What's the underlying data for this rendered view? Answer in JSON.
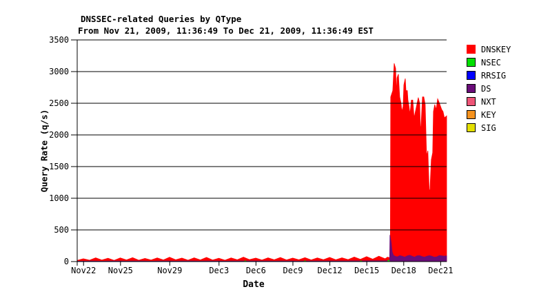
{
  "chart_data": {
    "type": "area",
    "title": "DNSSEC-related Queries by QType",
    "subtitle": "From Nov 21, 2009, 11:36:49 To Dec 21, 2009, 11:36:49 EST",
    "xlabel": "Date",
    "ylabel": "Query Rate (q/s)",
    "ylim": [
      0,
      3500
    ],
    "yticks": [
      0,
      500,
      1000,
      1500,
      2000,
      2500,
      3000,
      3500
    ],
    "x_range_days": [
      0,
      30
    ],
    "x_start": "Nov 21, 2009 11:36:49",
    "x_end": "Dec 21, 2009 11:36:49",
    "grid": "horizontal",
    "legend_position": "right",
    "xticks": [
      {
        "label": "Nov22",
        "t": 0.517
      },
      {
        "label": "Nov25",
        "t": 3.517
      },
      {
        "label": "Nov29",
        "t": 7.517
      },
      {
        "label": "Dec3",
        "t": 11.517
      },
      {
        "label": "Dec6",
        "t": 14.517
      },
      {
        "label": "Dec9",
        "t": 17.517
      },
      {
        "label": "Dec12",
        "t": 20.517
      },
      {
        "label": "Dec15",
        "t": 23.517
      },
      {
        "label": "Dec18",
        "t": 26.517
      },
      {
        "label": "Dec21",
        "t": 29.517
      }
    ],
    "legend": [
      {
        "label": "DNSKEY",
        "color": "#ff0000",
        "border": "#ff0000"
      },
      {
        "label": "NSEC",
        "color": "#00e000",
        "border": "#000000"
      },
      {
        "label": "RRSIG",
        "color": "#0000ff",
        "border": "#000000"
      },
      {
        "label": "DS",
        "color": "#6a0d79",
        "border": "#000000"
      },
      {
        "label": "NXT",
        "color": "#ee5577",
        "border": "#000000"
      },
      {
        "label": "KEY",
        "color": "#f5921e",
        "border": "#000000"
      },
      {
        "label": "SIG",
        "color": "#e3df00",
        "border": "#000000"
      }
    ],
    "series": [
      {
        "name": "DNSKEY",
        "color": "#ff0000",
        "points": [
          [
            0,
            18
          ],
          [
            0.5,
            45
          ],
          [
            1,
            22
          ],
          [
            1.5,
            60
          ],
          [
            2,
            25
          ],
          [
            2.5,
            52
          ],
          [
            3,
            20
          ],
          [
            3.5,
            58
          ],
          [
            4,
            26
          ],
          [
            4.5,
            62
          ],
          [
            5,
            22
          ],
          [
            5.5,
            50
          ],
          [
            6,
            24
          ],
          [
            6.5,
            58
          ],
          [
            7,
            26
          ],
          [
            7.5,
            68
          ],
          [
            8,
            28
          ],
          [
            8.5,
            55
          ],
          [
            9,
            22
          ],
          [
            9.5,
            60
          ],
          [
            10,
            26
          ],
          [
            10.5,
            66
          ],
          [
            11,
            24
          ],
          [
            11.5,
            52
          ],
          [
            12,
            22
          ],
          [
            12.5,
            58
          ],
          [
            13,
            28
          ],
          [
            13.5,
            70
          ],
          [
            14,
            30
          ],
          [
            14.5,
            55
          ],
          [
            15,
            24
          ],
          [
            15.5,
            60
          ],
          [
            16,
            28
          ],
          [
            16.5,
            64
          ],
          [
            17,
            26
          ],
          [
            17.5,
            55
          ],
          [
            18,
            28
          ],
          [
            18.5,
            62
          ],
          [
            19,
            26
          ],
          [
            19.5,
            58
          ],
          [
            20,
            30
          ],
          [
            20.5,
            66
          ],
          [
            21,
            28
          ],
          [
            21.5,
            60
          ],
          [
            22,
            32
          ],
          [
            22.5,
            72
          ],
          [
            23,
            35
          ],
          [
            23.5,
            78
          ],
          [
            24,
            38
          ],
          [
            24.5,
            85
          ],
          [
            25,
            45
          ],
          [
            25.2,
            70
          ],
          [
            25.43,
            60
          ],
          [
            25.46,
            2600
          ],
          [
            25.63,
            2700
          ],
          [
            25.74,
            3130
          ],
          [
            25.86,
            3050
          ],
          [
            25.92,
            2650
          ],
          [
            25.97,
            2900
          ],
          [
            26.08,
            2960
          ],
          [
            26.19,
            2600
          ],
          [
            26.3,
            2500
          ],
          [
            26.36,
            2370
          ],
          [
            26.47,
            2450
          ],
          [
            26.53,
            2790
          ],
          [
            26.64,
            2890
          ],
          [
            26.7,
            2700
          ],
          [
            26.81,
            2700
          ],
          [
            26.86,
            2550
          ],
          [
            26.92,
            2480
          ],
          [
            27.03,
            2330
          ],
          [
            27.14,
            2550
          ],
          [
            27.25,
            2550
          ],
          [
            27.36,
            2270
          ],
          [
            27.53,
            2430
          ],
          [
            27.7,
            2590
          ],
          [
            27.81,
            2500
          ],
          [
            27.87,
            2130
          ],
          [
            27.92,
            2130
          ],
          [
            28.04,
            2600
          ],
          [
            28.15,
            2600
          ],
          [
            28.26,
            2480
          ],
          [
            28.37,
            1670
          ],
          [
            28.48,
            1750
          ],
          [
            28.59,
            1090
          ],
          [
            28.65,
            1150
          ],
          [
            28.76,
            1610
          ],
          [
            28.87,
            1720
          ],
          [
            28.93,
            2370
          ],
          [
            29.04,
            2480
          ],
          [
            29.15,
            2400
          ],
          [
            29.27,
            2570
          ],
          [
            29.38,
            2520
          ],
          [
            29.49,
            2460
          ],
          [
            29.6,
            2400
          ],
          [
            29.71,
            2370
          ],
          [
            29.82,
            2270
          ],
          [
            30,
            2300
          ]
        ]
      },
      {
        "name": "RRSIG",
        "color": "#0000ff",
        "points": [
          [
            0,
            0
          ],
          [
            30,
            0
          ]
        ]
      },
      {
        "name": "NXT",
        "color": "#ee5577",
        "points": [
          [
            0,
            0
          ],
          [
            30,
            0
          ]
        ]
      },
      {
        "name": "KEY",
        "color": "#f5921e",
        "points": [
          [
            0,
            0
          ],
          [
            30,
            0
          ]
        ]
      },
      {
        "name": "SIG",
        "color": "#e3df00",
        "points": [
          [
            0,
            0
          ],
          [
            30,
            0
          ]
        ]
      },
      {
        "name": "DS",
        "color": "#6a0d79",
        "points": [
          [
            0,
            7
          ],
          [
            1,
            9
          ],
          [
            2,
            7
          ],
          [
            3,
            9
          ],
          [
            4,
            8
          ],
          [
            5,
            9
          ],
          [
            6,
            7
          ],
          [
            7,
            10
          ],
          [
            8,
            8
          ],
          [
            9,
            9
          ],
          [
            10,
            8
          ],
          [
            11,
            9
          ],
          [
            12,
            8
          ],
          [
            13,
            10
          ],
          [
            14,
            9
          ],
          [
            15,
            9
          ],
          [
            16,
            8
          ],
          [
            17,
            9
          ],
          [
            18,
            8
          ],
          [
            19,
            9
          ],
          [
            20,
            9
          ],
          [
            21,
            9
          ],
          [
            22,
            10
          ],
          [
            23,
            11
          ],
          [
            24,
            12
          ],
          [
            25,
            13
          ],
          [
            25.37,
            15
          ],
          [
            25.4,
            420
          ],
          [
            25.5,
            300
          ],
          [
            25.58,
            150
          ],
          [
            25.68,
            100
          ],
          [
            25.8,
            85
          ],
          [
            26,
            75
          ],
          [
            26.2,
            95
          ],
          [
            26.4,
            85
          ],
          [
            26.6,
            70
          ],
          [
            26.8,
            90
          ],
          [
            27,
            100
          ],
          [
            27.2,
            85
          ],
          [
            27.4,
            70
          ],
          [
            27.6,
            90
          ],
          [
            27.8,
            95
          ],
          [
            28,
            80
          ],
          [
            28.2,
            70
          ],
          [
            28.4,
            85
          ],
          [
            28.6,
            95
          ],
          [
            28.8,
            85
          ],
          [
            29,
            70
          ],
          [
            29.2,
            75
          ],
          [
            29.4,
            95
          ],
          [
            29.6,
            90
          ],
          [
            29.8,
            85
          ],
          [
            30,
            90
          ]
        ]
      },
      {
        "name": "NSEC",
        "color": "#00e000",
        "points": [
          [
            0,
            0
          ],
          [
            13.55,
            0
          ],
          [
            13.65,
            12
          ],
          [
            13.75,
            0
          ],
          [
            18.4,
            0
          ],
          [
            18.5,
            12
          ],
          [
            18.6,
            0
          ],
          [
            22.95,
            0
          ],
          [
            23.05,
            12
          ],
          [
            23.15,
            0
          ],
          [
            25.18,
            0
          ],
          [
            25.28,
            25
          ],
          [
            25.4,
            0
          ],
          [
            30,
            0
          ]
        ]
      }
    ]
  }
}
